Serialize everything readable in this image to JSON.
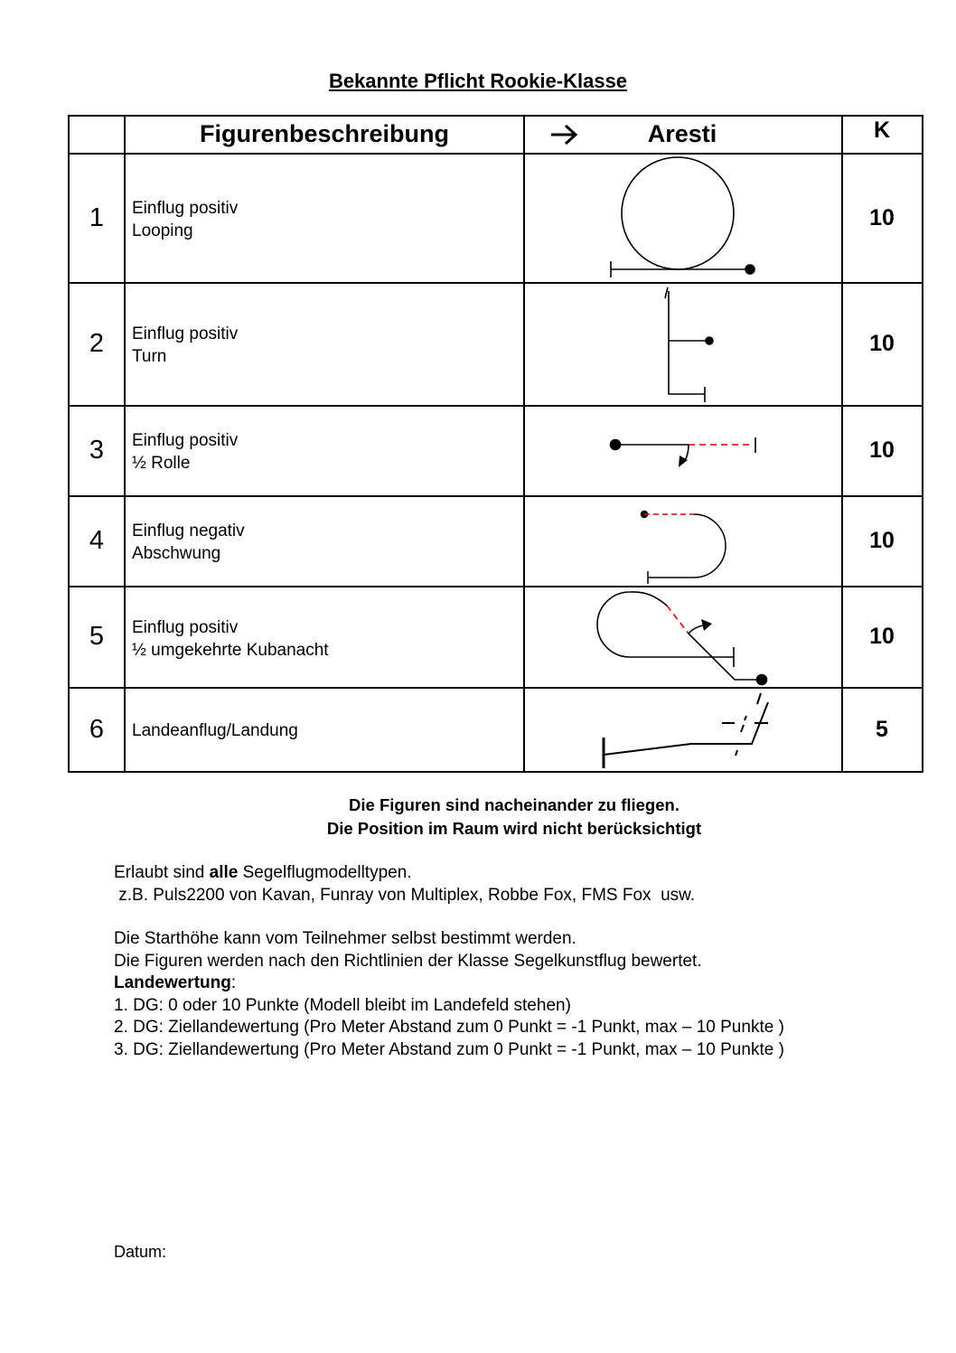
{
  "title": "Bekannte Pflicht Rookie-Klasse",
  "table": {
    "headers": {
      "description": "Figurenbeschreibung",
      "arrow_icon": "right-arrow",
      "aresti": "Aresti",
      "k": "K"
    },
    "rows": [
      {
        "number": "1",
        "line1": "Einflug positiv",
        "line2": "Looping",
        "k": "10"
      },
      {
        "number": "2",
        "line1": "Einflug positiv",
        "line2": "Turn",
        "k": "10"
      },
      {
        "number": "3",
        "line1": "Einflug positiv",
        "line2": "½ Rolle",
        "k": "10"
      },
      {
        "number": "4",
        "line1": "Einflug negativ",
        "line2": "Abschwung",
        "k": "10"
      },
      {
        "number": "5",
        "line1": "Einflug positiv",
        "line2": "½ umgekehrte Kubanacht",
        "k": "10"
      },
      {
        "number": "6",
        "line1": "Landeanflug/Landung",
        "line2": "",
        "k": "5"
      }
    ]
  },
  "notes": [
    "Die Figuren sind nacheinander zu fliegen.",
    "Die Position im Raum wird nicht berücksichtigt"
  ],
  "body": {
    "allowed_pre": "Erlaubt sind ",
    "allowed_bold": "alle",
    "allowed_post": " Segelflugmodelltypen.",
    "examples": " z.B. Puls2200 von Kavan, Funray von Multiplex, Robbe Fox, FMS Fox  usw.",
    "start": "Die Starthöhe kann vom Teilnehmer selbst bestimmt werden.",
    "rules": "Die Figuren werden nach den Richtlinien der Klasse Segelkunstflug bewertet.",
    "landing_label": "Landewertung",
    "landing_colon": ":",
    "landing": [
      "1. DG: 0 oder 10 Punkte (Modell bleibt im Landefeld stehen)",
      "2. DG: Ziellandewertung (Pro Meter Abstand zum 0 Punkt = -1 Punkt, max – 10 Punkte )",
      "3. DG: Ziellandewertung (Pro Meter Abstand zum 0 Punkt = -1 Punkt, max – 10 Punkte )"
    ]
  },
  "date_label": "Datum:",
  "colors": {
    "dashed_segment": "#e00000"
  }
}
